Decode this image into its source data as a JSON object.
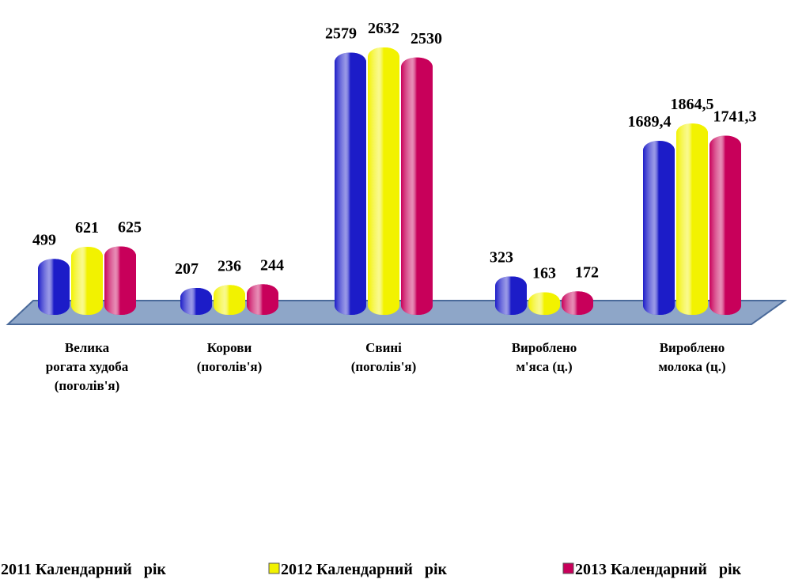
{
  "chart_data": {
    "type": "bar3d",
    "categories": [
      "Велика\nрогата  худоба\n(поголів'я)",
      "Корови\n(поголів'я)",
      "Свині\n(поголів'я)",
      "Вироблено\nм'яса (ц.)",
      "Вироблено\nмолока   (ц.)"
    ],
    "series": [
      {
        "name": "2011 Календарний   рік",
        "color": "#1c1cc8",
        "values": [
          499,
          207,
          2579,
          323,
          1689.4
        ],
        "value_labels": [
          "499",
          "207",
          "2579",
          "323",
          "1689,4"
        ]
      },
      {
        "name": "2012 Календарний   рік",
        "color": "#f2f200",
        "values": [
          621,
          236,
          2632,
          163,
          1864.5
        ],
        "value_labels": [
          "621",
          "236",
          "2632",
          "163",
          "1864,5"
        ]
      },
      {
        "name": "2013 Календарний   рік",
        "color": "#c8005a",
        "values": [
          625,
          244,
          2530,
          172,
          1741.3
        ],
        "value_labels": [
          "625",
          "244",
          "2530",
          "172",
          "1741,3"
        ]
      }
    ],
    "legend": "bottom"
  }
}
